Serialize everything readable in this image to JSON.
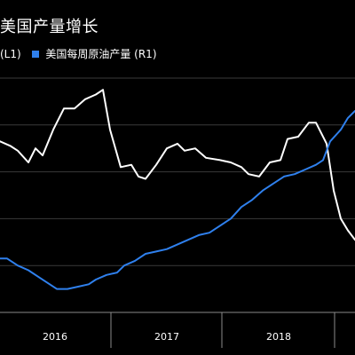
{
  "chart_data": {
    "type": "line",
    "title": "美国产量增长",
    "legend": [
      "(L1)",
      "美国每周原油产量 (R1)"
    ],
    "x_tick_labels": [
      "2016",
      "2017",
      "2018"
    ],
    "grid": true,
    "series": [
      {
        "name": "(L1)",
        "color": "#ffffff",
        "points": [
          {
            "t": 0.0,
            "v": 0.73
          },
          {
            "t": 0.03,
            "v": 0.71
          },
          {
            "t": 0.05,
            "v": 0.69
          },
          {
            "t": 0.08,
            "v": 0.64
          },
          {
            "t": 0.1,
            "v": 0.7
          },
          {
            "t": 0.12,
            "v": 0.67
          },
          {
            "t": 0.15,
            "v": 0.78
          },
          {
            "t": 0.18,
            "v": 0.87
          },
          {
            "t": 0.21,
            "v": 0.87
          },
          {
            "t": 0.24,
            "v": 0.91
          },
          {
            "t": 0.27,
            "v": 0.93
          },
          {
            "t": 0.29,
            "v": 0.95
          },
          {
            "t": 0.31,
            "v": 0.78
          },
          {
            "t": 0.34,
            "v": 0.62
          },
          {
            "t": 0.37,
            "v": 0.63
          },
          {
            "t": 0.39,
            "v": 0.58
          },
          {
            "t": 0.41,
            "v": 0.57
          },
          {
            "t": 0.44,
            "v": 0.63
          },
          {
            "t": 0.47,
            "v": 0.7
          },
          {
            "t": 0.5,
            "v": 0.72
          },
          {
            "t": 0.52,
            "v": 0.69
          },
          {
            "t": 0.55,
            "v": 0.7
          },
          {
            "t": 0.58,
            "v": 0.66
          },
          {
            "t": 0.62,
            "v": 0.65
          },
          {
            "t": 0.65,
            "v": 0.64
          },
          {
            "t": 0.68,
            "v": 0.62
          },
          {
            "t": 0.7,
            "v": 0.59
          },
          {
            "t": 0.73,
            "v": 0.58
          },
          {
            "t": 0.76,
            "v": 0.64
          },
          {
            "t": 0.79,
            "v": 0.65
          },
          {
            "t": 0.81,
            "v": 0.74
          },
          {
            "t": 0.84,
            "v": 0.75
          },
          {
            "t": 0.87,
            "v": 0.81
          },
          {
            "t": 0.89,
            "v": 0.81
          },
          {
            "t": 0.92,
            "v": 0.72
          },
          {
            "t": 0.94,
            "v": 0.52
          },
          {
            "t": 0.96,
            "v": 0.4
          },
          {
            "t": 0.98,
            "v": 0.35
          },
          {
            "t": 1.0,
            "v": 0.31
          }
        ]
      },
      {
        "name": "美国每周原油产量 (R1)",
        "color": "#2f80ed",
        "points": [
          {
            "t": 0.0,
            "v": 0.23
          },
          {
            "t": 0.02,
            "v": 0.23
          },
          {
            "t": 0.05,
            "v": 0.2
          },
          {
            "t": 0.08,
            "v": 0.18
          },
          {
            "t": 0.11,
            "v": 0.15
          },
          {
            "t": 0.14,
            "v": 0.12
          },
          {
            "t": 0.16,
            "v": 0.1
          },
          {
            "t": 0.19,
            "v": 0.1
          },
          {
            "t": 0.22,
            "v": 0.11
          },
          {
            "t": 0.25,
            "v": 0.12
          },
          {
            "t": 0.27,
            "v": 0.14
          },
          {
            "t": 0.3,
            "v": 0.16
          },
          {
            "t": 0.33,
            "v": 0.17
          },
          {
            "t": 0.35,
            "v": 0.2
          },
          {
            "t": 0.38,
            "v": 0.22
          },
          {
            "t": 0.41,
            "v": 0.25
          },
          {
            "t": 0.44,
            "v": 0.26
          },
          {
            "t": 0.47,
            "v": 0.27
          },
          {
            "t": 0.5,
            "v": 0.29
          },
          {
            "t": 0.53,
            "v": 0.31
          },
          {
            "t": 0.56,
            "v": 0.33
          },
          {
            "t": 0.59,
            "v": 0.34
          },
          {
            "t": 0.62,
            "v": 0.37
          },
          {
            "t": 0.65,
            "v": 0.4
          },
          {
            "t": 0.68,
            "v": 0.45
          },
          {
            "t": 0.71,
            "v": 0.48
          },
          {
            "t": 0.74,
            "v": 0.52
          },
          {
            "t": 0.77,
            "v": 0.55
          },
          {
            "t": 0.8,
            "v": 0.58
          },
          {
            "t": 0.83,
            "v": 0.59
          },
          {
            "t": 0.86,
            "v": 0.61
          },
          {
            "t": 0.89,
            "v": 0.63
          },
          {
            "t": 0.91,
            "v": 0.65
          },
          {
            "t": 0.93,
            "v": 0.73
          },
          {
            "t": 0.96,
            "v": 0.78
          },
          {
            "t": 0.98,
            "v": 0.83
          },
          {
            "t": 1.0,
            "v": 0.86
          }
        ]
      }
    ]
  }
}
